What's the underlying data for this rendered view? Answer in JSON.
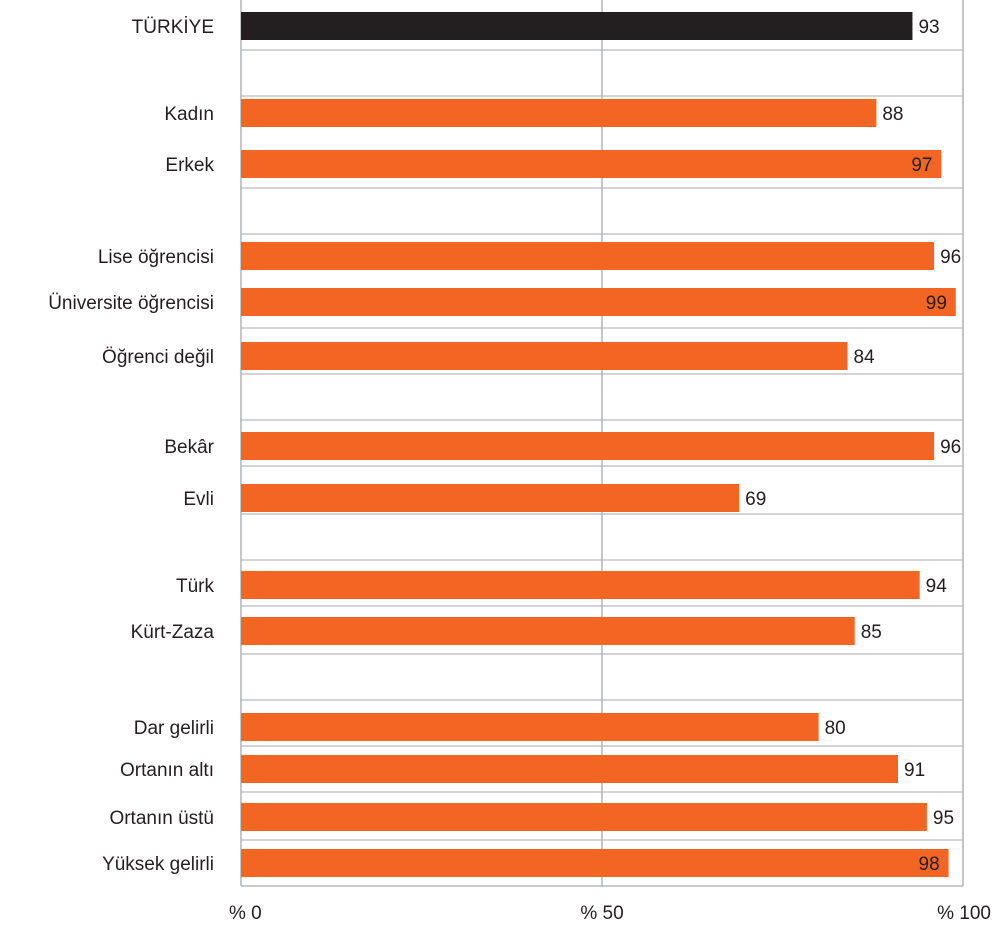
{
  "chart_data": {
    "type": "bar",
    "orientation": "horizontal",
    "categories": [
      "TÜRKİYE",
      "Kadın",
      "Erkek",
      "Lise öğrencisi",
      "Üniversite öğrencisi",
      "Öğrenci değil",
      "Bekâr",
      "Evli",
      "Türk",
      "Kürt-Zaza",
      "Dar gelirli",
      "Ortanın altı",
      "Ortanın üstü",
      "Yüksek gelirli"
    ],
    "values": [
      93,
      88,
      97,
      96,
      99,
      84,
      96,
      69,
      94,
      85,
      80,
      91,
      95,
      98
    ],
    "value_labels": [
      "93",
      "88",
      "97",
      "96",
      "99",
      "84",
      "96",
      "69",
      "94",
      "85",
      "80",
      "91",
      "95",
      "98"
    ],
    "groups": [
      {
        "categories": [
          "TÜRKİYE"
        ]
      },
      {
        "categories": [
          "Kadın",
          "Erkek"
        ]
      },
      {
        "categories": [
          "Lise öğrencisi",
          "Üniversite öğrencisi",
          "Öğrenci değil"
        ]
      },
      {
        "categories": [
          "Bekâr",
          "Evli"
        ]
      },
      {
        "categories": [
          "Türk",
          "Kürt-Zaza"
        ]
      },
      {
        "categories": [
          "Dar gelirli",
          "Ortanın altı",
          "Ortanın üstü",
          "Yüksek gelirli"
        ]
      }
    ],
    "xlim": [
      0,
      100
    ],
    "x_ticks": [
      0,
      50,
      100
    ],
    "x_tick_labels": [
      "% 0",
      "% 50",
      "% 100"
    ],
    "grid": true,
    "colors": {
      "total": "#231f20",
      "bar": "#f26522",
      "grid": "#a7a9ac",
      "text": "#231f20"
    },
    "title": "",
    "xlabel": "",
    "ylabel": ""
  }
}
